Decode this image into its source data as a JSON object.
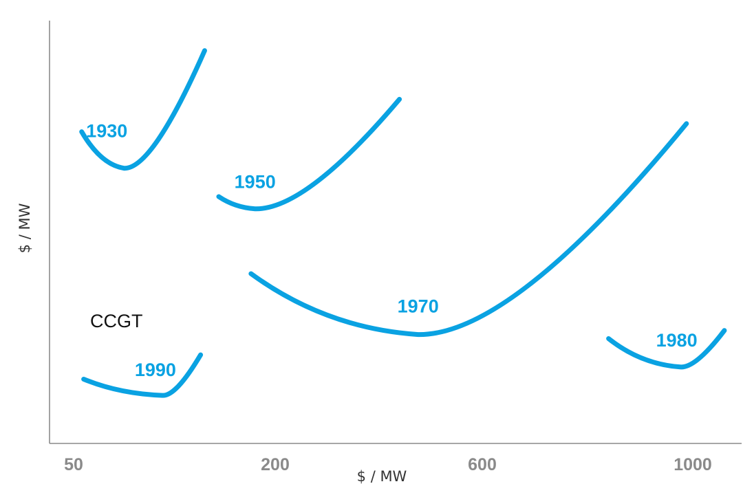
{
  "chart_data": {
    "type": "line",
    "title": "",
    "xlabel": "$ / MW",
    "ylabel": "$ / MW",
    "x_ticks": [
      "50",
      "200",
      "600",
      "1000"
    ],
    "series": [
      {
        "name": "1930",
        "points": [
          [
            0.04,
            0.76
          ],
          [
            0.25,
            0.67
          ],
          [
            0.65,
            0.96
          ]
        ]
      },
      {
        "name": "1950",
        "points": [
          [
            0.72,
            0.6
          ],
          [
            0.9,
            0.57
          ],
          [
            1.6,
            0.84
          ]
        ]
      },
      {
        "name": "1970",
        "points": [
          [
            0.88,
            0.41
          ],
          [
            1.69,
            0.26
          ],
          [
            2.97,
            0.78
          ]
        ]
      },
      {
        "name": "1980",
        "points": [
          [
            2.6,
            0.25
          ],
          [
            2.94,
            0.18
          ],
          [
            3.15,
            0.27
          ]
        ]
      },
      {
        "name": "1990",
        "points": [
          [
            0.05,
            0.15
          ],
          [
            0.44,
            0.11
          ],
          [
            0.63,
            0.21
          ]
        ]
      }
    ],
    "annotations": [
      {
        "text": "CCGT"
      }
    ],
    "grid": false,
    "color": "#0aa2e2"
  }
}
